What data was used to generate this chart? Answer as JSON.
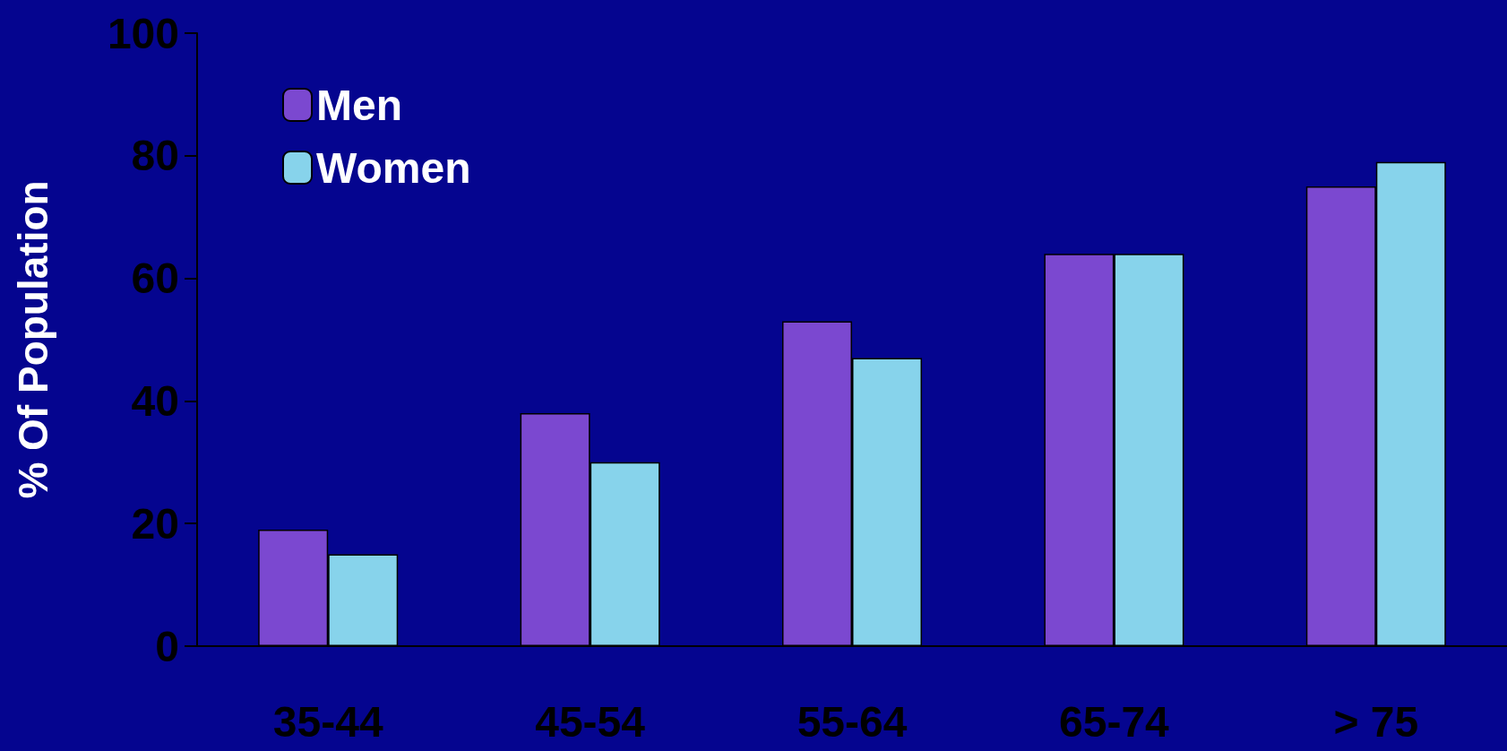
{
  "chart_data": {
    "type": "bar",
    "ylabel": "% Of Population",
    "categories": [
      "35-44",
      "45-54",
      "55-64",
      "65-74",
      "> 75"
    ],
    "series": [
      {
        "name": "Men",
        "color": "#7b48d0",
        "values": [
          19,
          38,
          53,
          64,
          75
        ]
      },
      {
        "name": "Women",
        "color": "#87d3eb",
        "values": [
          15,
          30,
          47,
          64,
          79
        ]
      }
    ],
    "ylim": [
      0,
      100
    ],
    "yticks": [
      0,
      20,
      40,
      60,
      80,
      100
    ],
    "grid": false,
    "legend": "top left"
  }
}
